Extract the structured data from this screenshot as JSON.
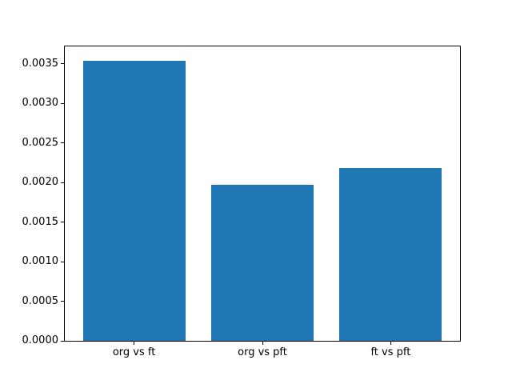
{
  "chart_data": {
    "type": "bar",
    "title": "",
    "xlabel": "",
    "ylabel": "",
    "categories": [
      "org vs ft",
      "org vs pft",
      "ft vs pft"
    ],
    "values": [
      0.00354,
      0.00197,
      0.00218
    ],
    "bar_color": "#1f77b4",
    "bar_width": 0.8,
    "xlim": [
      -0.54,
      2.54
    ],
    "ylim": [
      0,
      0.003717
    ],
    "ytick_labels": [
      "0.0000",
      "0.0005",
      "0.0010",
      "0.0015",
      "0.0020",
      "0.0025",
      "0.0030",
      "0.0035"
    ],
    "grid": false,
    "legend": "none",
    "background": "#ffffff",
    "spine_color": "#000000",
    "text_color": "#000000"
  }
}
